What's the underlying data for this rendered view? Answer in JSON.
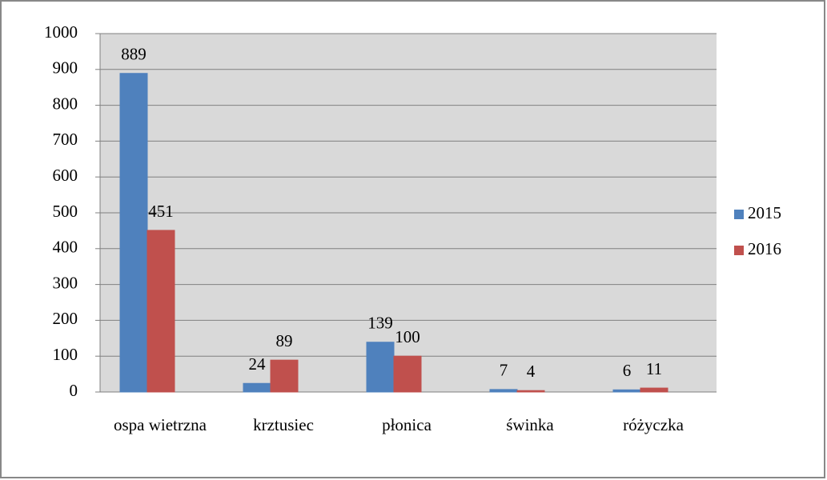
{
  "chart_data": {
    "type": "bar",
    "categories": [
      "ospa wietrzna",
      "krztusiec",
      "płonica",
      "świnka",
      "różyczka"
    ],
    "series": [
      {
        "name": "2015",
        "color": "#4f81bd",
        "values": [
          889,
          24,
          139,
          7,
          6
        ]
      },
      {
        "name": "2016",
        "color": "#c0504d",
        "values": [
          451,
          89,
          100,
          4,
          11
        ]
      }
    ],
    "ylim": [
      0,
      1000
    ],
    "yticks": [
      0,
      100,
      200,
      300,
      400,
      500,
      600,
      700,
      800,
      900,
      1000
    ],
    "grid": true,
    "legend": "right"
  }
}
